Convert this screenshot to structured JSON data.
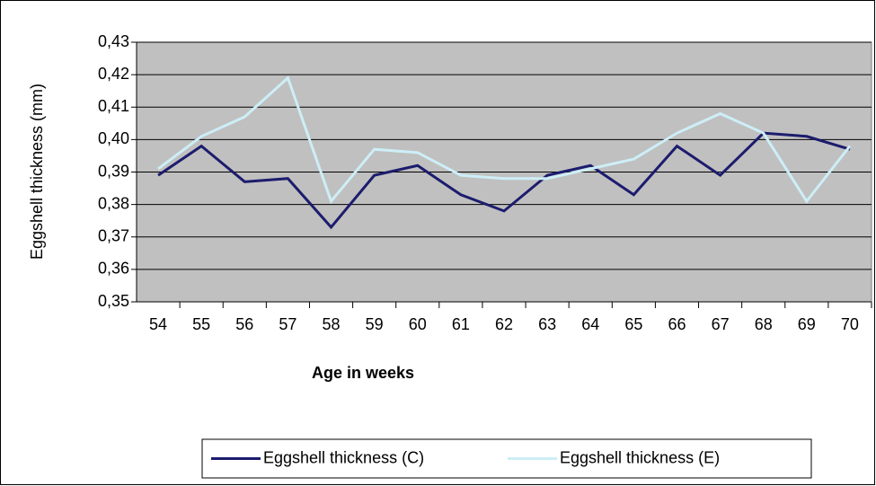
{
  "chart_data": {
    "type": "line",
    "x_label": "Age in weeks",
    "y_label": "Eggshell thickness (mm)",
    "categories": [
      54,
      55,
      56,
      57,
      58,
      59,
      60,
      61,
      62,
      63,
      64,
      65,
      66,
      67,
      68,
      69,
      70
    ],
    "series": [
      {
        "name": "Eggshell thickness (C)",
        "color": "#1c1c6e",
        "values": [
          0.389,
          0.398,
          0.387,
          0.388,
          0.373,
          0.389,
          0.392,
          0.383,
          0.378,
          0.389,
          0.392,
          0.383,
          0.398,
          0.389,
          0.402,
          0.401,
          0.397
        ]
      },
      {
        "name": "Eggshell thickness (E)",
        "color": "#cdeef7",
        "values": [
          0.391,
          0.401,
          0.407,
          0.419,
          0.381,
          0.397,
          0.396,
          0.389,
          0.388,
          0.388,
          0.391,
          0.394,
          0.402,
          0.408,
          0.402,
          0.381,
          0.398
        ]
      }
    ],
    "ylim": [
      0.35,
      0.43
    ],
    "yticks": [
      {
        "value": 0.35,
        "label": "0,35"
      },
      {
        "value": 0.36,
        "label": "0,36"
      },
      {
        "value": 0.37,
        "label": "0,37"
      },
      {
        "value": 0.38,
        "label": "0,38"
      },
      {
        "value": 0.39,
        "label": "0,39"
      },
      {
        "value": 0.4,
        "label": "0,40"
      },
      {
        "value": 0.41,
        "label": "0,41"
      },
      {
        "value": 0.42,
        "label": "0,42"
      },
      {
        "value": 0.43,
        "label": "0,43"
      }
    ],
    "grid": true,
    "plot_background": "#c0c0c0",
    "legend": "bottom"
  }
}
